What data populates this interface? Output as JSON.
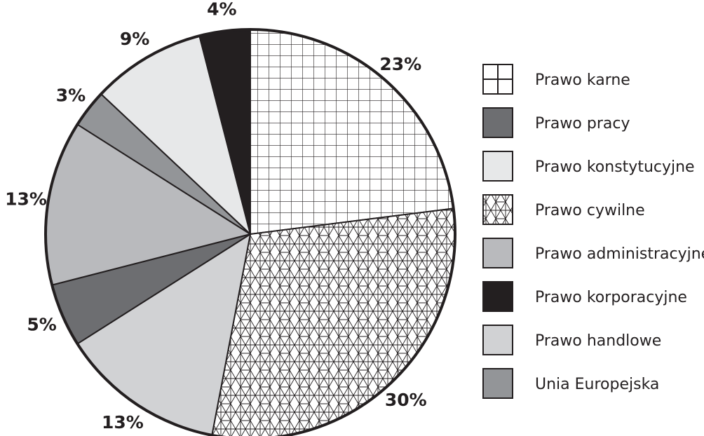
{
  "chart_data": {
    "type": "pie",
    "title": "",
    "slices": [
      {
        "name": "Prawo karne",
        "value": 23,
        "label": "23%",
        "fill": "pattern:grid"
      },
      {
        "name": "Prawo cywilne",
        "value": 30,
        "label": "30%",
        "fill": "pattern:triangles"
      },
      {
        "name": "Prawo handlowe",
        "value": 13,
        "label": "13%",
        "fill": "#d1d2d4"
      },
      {
        "name": "Prawo pracy",
        "value": 5,
        "label": "5%",
        "fill": "#6d6e71"
      },
      {
        "name": "Prawo administracyjne",
        "value": 13,
        "label": "13%",
        "fill": "#b9babd"
      },
      {
        "name": "Unia Europejska",
        "value": 3,
        "label": "3%",
        "fill": "#939598"
      },
      {
        "name": "Prawo konstytucyjne",
        "value": 9,
        "label": "9%",
        "fill": "#e7e8e9"
      },
      {
        "name": "Prawo korporacyjne",
        "value": 4,
        "label": "4%",
        "fill": "#231f20"
      }
    ],
    "legend": {
      "placement": "right",
      "entries": [
        {
          "name": "Prawo karne",
          "fill": "pattern:grid"
        },
        {
          "name": "Prawo pracy",
          "fill": "#6d6e71"
        },
        {
          "name": "Prawo konstytucyjne",
          "fill": "#e7e8e9"
        },
        {
          "name": "Prawo cywilne",
          "fill": "pattern:triangles"
        },
        {
          "name": "Prawo administracyjne",
          "fill": "#b9babd"
        },
        {
          "name": "Prawo korporacyjne",
          "fill": "#231f20"
        },
        {
          "name": "Prawo handlowe",
          "fill": "#d1d2d4"
        },
        {
          "name": "Unia Europejska",
          "fill": "#939598"
        }
      ]
    }
  }
}
